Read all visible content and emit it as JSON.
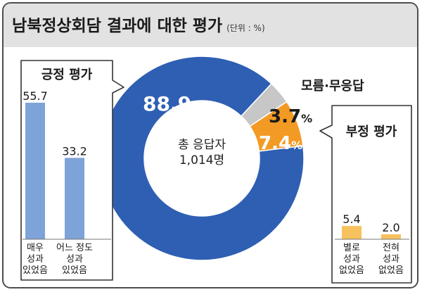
{
  "header": {
    "title": "남북정상회담 결과에 대한 평가",
    "unit": "(단위 : %)"
  },
  "chart_data": [
    {
      "type": "pie",
      "center_label": [
        "총 응답자",
        "1,014명"
      ],
      "slices": [
        {
          "label": "긍정 평가",
          "value": 88.9,
          "display": "88.9",
          "color": "#2e5fb3"
        },
        {
          "label": "모름·무응답",
          "value": 3.7,
          "display": "3.7",
          "color": "#c7c7c7"
        },
        {
          "label": "부정 평가",
          "value": 7.4,
          "display": "7.4",
          "color": "#f39a24"
        }
      ],
      "percent_sign": "%"
    },
    {
      "type": "bar",
      "title": "긍정 평가",
      "categories": [
        [
          "매우",
          "성과",
          "있었음"
        ],
        [
          "어느 정도",
          "성과",
          "있었음"
        ]
      ],
      "values": [
        55.7,
        33.2
      ],
      "value_labels": [
        "55.7",
        "33.2"
      ],
      "color": "#7ea3d8",
      "ylim": [
        0,
        60
      ]
    },
    {
      "type": "bar",
      "title": "부정 평가",
      "categories": [
        [
          "별로",
          "성과",
          "없었음"
        ],
        [
          "전혀",
          "성과",
          "없었음"
        ]
      ],
      "values": [
        5.4,
        2.0
      ],
      "value_labels": [
        "5.4",
        "2.0"
      ],
      "color": "#f7c15d",
      "ylim": [
        0,
        60
      ]
    }
  ],
  "callout": {
    "unknown_label": "모름·무응답"
  }
}
